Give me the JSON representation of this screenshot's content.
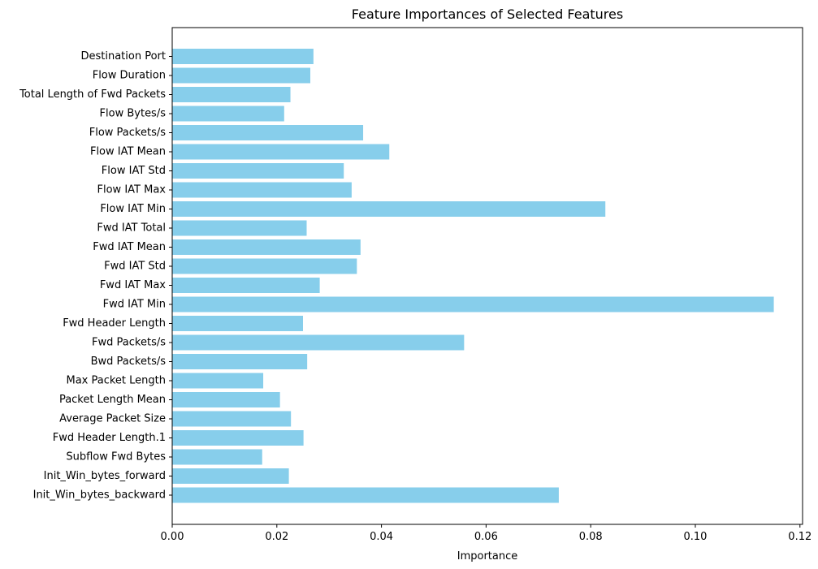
{
  "chart_data": {
    "type": "bar",
    "orientation": "horizontal",
    "title": "Feature Importances of Selected Features",
    "xlabel": "Importance",
    "ylabel": "",
    "bar_color": "#87CEEB",
    "xlim": [
      0,
      0.1205
    ],
    "xticks": [
      0.0,
      0.02,
      0.04,
      0.06,
      0.08,
      0.1,
      0.12
    ],
    "xtick_labels": [
      "0.00",
      "0.02",
      "0.04",
      "0.06",
      "0.08",
      "0.10",
      "0.12"
    ],
    "grid": false,
    "categories": [
      "Destination Port",
      "Flow Duration",
      "Total Length of Fwd Packets",
      "Flow Bytes/s",
      "Flow Packets/s",
      "Flow IAT Mean",
      "Flow IAT Std",
      "Flow IAT Max",
      "Flow IAT Min",
      "Fwd IAT Total",
      "Fwd IAT Mean",
      "Fwd IAT Std",
      "Fwd IAT Max",
      "Fwd IAT Min",
      "Fwd Header Length",
      "Fwd Packets/s",
      "Bwd Packets/s",
      "Max Packet Length",
      "Packet Length Mean",
      "Average Packet Size",
      "Fwd Header Length.1",
      "Subflow Fwd Bytes",
      "Init_Win_bytes_forward",
      "Init_Win_bytes_backward"
    ],
    "values": [
      0.027,
      0.0264,
      0.0226,
      0.0214,
      0.0365,
      0.0415,
      0.0328,
      0.0343,
      0.0828,
      0.0257,
      0.036,
      0.0353,
      0.0282,
      0.115,
      0.025,
      0.0558,
      0.0258,
      0.0174,
      0.0206,
      0.0227,
      0.0251,
      0.0172,
      0.0223,
      0.0739
    ]
  }
}
